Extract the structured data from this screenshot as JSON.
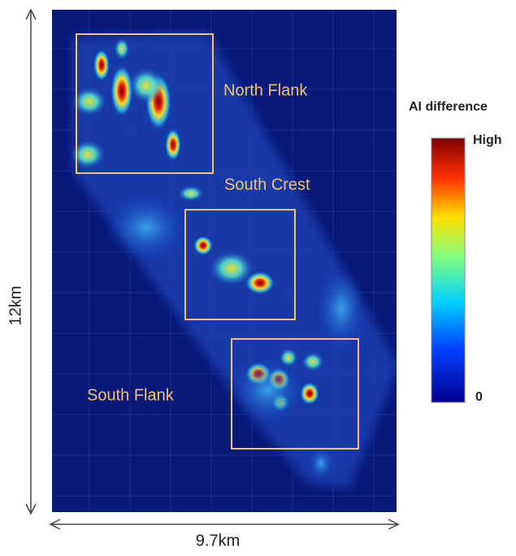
{
  "dimensions": {
    "height": "12km",
    "width": "9.7km"
  },
  "regions": [
    "North Flank",
    "South Crest",
    "South Flank"
  ],
  "colorbar": {
    "title": "AI difference",
    "high": "High",
    "low": "0"
  }
}
